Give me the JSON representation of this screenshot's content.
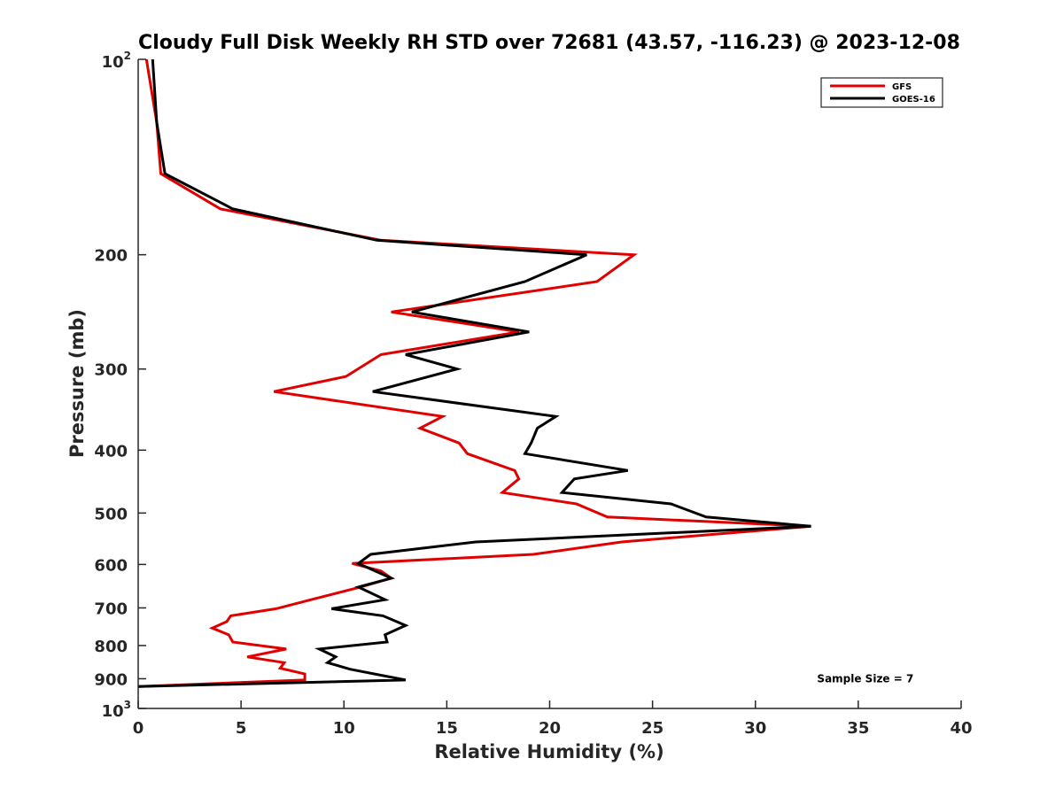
{
  "chart_data": {
    "type": "line",
    "title": "Cloudy Full Disk Weekly RH STD over 72681 (43.57, -116.23) @ 2023-12-08",
    "xlabel": "Relative Humidity (%)",
    "ylabel": "Pressure (mb)",
    "xlim": [
      0,
      40
    ],
    "ylim": [
      100,
      1000
    ],
    "y_scale": "log",
    "y_reversed": true,
    "grid": false,
    "legend_position": "top-right",
    "x_ticks": [
      "0",
      "5",
      "10",
      "15",
      "20",
      "25",
      "30",
      "35",
      "40"
    ],
    "y_ticks": [
      {
        "value": 100,
        "base": "10",
        "exp": "2",
        "label": ""
      },
      {
        "value": 200,
        "label": "200"
      },
      {
        "value": 300,
        "label": "300"
      },
      {
        "value": 400,
        "label": "400"
      },
      {
        "value": 500,
        "label": "500"
      },
      {
        "value": 600,
        "label": "600"
      },
      {
        "value": 700,
        "label": "700"
      },
      {
        "value": 800,
        "label": "800"
      },
      {
        "value": 900,
        "label": "900"
      },
      {
        "value": 1000,
        "base": "10",
        "exp": "3",
        "label": ""
      }
    ],
    "series": [
      {
        "name": "GFS",
        "color": "#e00000",
        "points": [
          [
            0.4,
            100
          ],
          [
            0.9,
            125
          ],
          [
            1.1,
            150
          ],
          [
            4.0,
            170
          ],
          [
            11.8,
            190
          ],
          [
            24.1,
            200
          ],
          [
            22.3,
            220
          ],
          [
            12.3,
            245
          ],
          [
            18.5,
            263
          ],
          [
            11.8,
            285
          ],
          [
            10.1,
            308
          ],
          [
            6.6,
            325
          ],
          [
            14.8,
            355
          ],
          [
            13.7,
            370
          ],
          [
            15.6,
            390
          ],
          [
            16.0,
            405
          ],
          [
            18.3,
            430
          ],
          [
            18.5,
            443
          ],
          [
            17.7,
            465
          ],
          [
            21.3,
            484
          ],
          [
            22.8,
            507
          ],
          [
            32.7,
            524
          ],
          [
            23.5,
            554
          ],
          [
            19.2,
            579
          ],
          [
            10.4,
            598
          ],
          [
            11.8,
            614
          ],
          [
            12.3,
            630
          ],
          [
            10.8,
            650
          ],
          [
            8.4,
            680
          ],
          [
            6.7,
            702
          ],
          [
            4.5,
            720
          ],
          [
            4.3,
            735
          ],
          [
            3.6,
            752
          ],
          [
            4.4,
            770
          ],
          [
            4.6,
            790
          ],
          [
            7.2,
            810
          ],
          [
            5.3,
            833
          ],
          [
            7.1,
            850
          ],
          [
            6.9,
            867
          ],
          [
            8.1,
            885
          ],
          [
            8.1,
            904
          ],
          [
            0.0,
            925
          ]
        ]
      },
      {
        "name": "GOES-16",
        "color": "#000000",
        "points": [
          [
            0.7,
            100
          ],
          [
            0.9,
            125
          ],
          [
            1.3,
            150
          ],
          [
            4.6,
            170
          ],
          [
            11.6,
            190
          ],
          [
            21.8,
            200
          ],
          [
            18.8,
            220
          ],
          [
            13.3,
            245
          ],
          [
            19.0,
            263
          ],
          [
            13.0,
            285
          ],
          [
            15.5,
            300
          ],
          [
            11.4,
            325
          ],
          [
            20.3,
            355
          ],
          [
            19.4,
            370
          ],
          [
            19.1,
            390
          ],
          [
            18.8,
            405
          ],
          [
            23.8,
            430
          ],
          [
            21.2,
            443
          ],
          [
            20.6,
            465
          ],
          [
            25.9,
            484
          ],
          [
            27.6,
            507
          ],
          [
            32.7,
            524
          ],
          [
            16.4,
            554
          ],
          [
            11.3,
            579
          ],
          [
            10.7,
            598
          ],
          [
            12.3,
            630
          ],
          [
            10.7,
            650
          ],
          [
            12.0,
            680
          ],
          [
            9.4,
            702
          ],
          [
            11.9,
            720
          ],
          [
            13.0,
            745
          ],
          [
            12.0,
            770
          ],
          [
            12.1,
            790
          ],
          [
            8.8,
            810
          ],
          [
            9.6,
            833
          ],
          [
            9.2,
            850
          ],
          [
            10.3,
            870
          ],
          [
            13.0,
            904
          ],
          [
            0.0,
            925
          ]
        ]
      }
    ],
    "annotations": [
      {
        "text": "Sample Size = 7",
        "x": 33.0,
        "y": 900
      }
    ]
  }
}
